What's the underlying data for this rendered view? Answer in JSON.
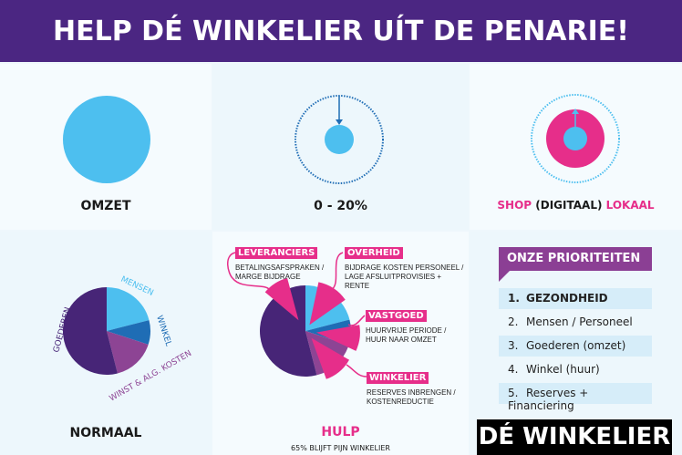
{
  "header": {
    "title": "HELP DÉ WINKELIER UÍT DE PENARIE!"
  },
  "top": {
    "omzet": {
      "label": "OMZET"
    },
    "drop": {
      "label": "0 - 20%"
    },
    "shop": {
      "label_1": "SHOP",
      "label_2": "(DIGITAAL)",
      "label_3": "LOKAAL"
    }
  },
  "normaal": {
    "label": "NORMAAL"
  },
  "hulp": {
    "label": "HULP",
    "note": "65% BLIJFT PIJN WINKELIER",
    "callouts": [
      {
        "title": "LEVERANCIERS",
        "text": [
          "BETALINGSAFSPRAKEN /",
          "MARGE BIJDRAGE"
        ]
      },
      {
        "title": "OVERHEID",
        "text": [
          "BIJDRAGE KOSTEN PERSONEEL /",
          "LAGE AFSLUITPROVISIES +",
          "RENTE"
        ]
      },
      {
        "title": "VASTGOED",
        "text": [
          "HUURVRIJE PERIODE /",
          "HUUR NAAR OMZET"
        ]
      },
      {
        "title": "WINKELIER",
        "text": [
          "RESERVES INBRENGEN /",
          "KOSTENREDUCTIE"
        ]
      }
    ]
  },
  "priorities": {
    "title": "ONZE PRIORITEITEN",
    "items": [
      {
        "n": "1.",
        "label": "GEZONDHEID"
      },
      {
        "n": "2.",
        "label": "Mensen / Personeel"
      },
      {
        "n": "3.",
        "label": "Goederen (omzet)"
      },
      {
        "n": "4.",
        "label": "Winkel (huur)"
      },
      {
        "n": "5.",
        "label": "Reserves + Financiering"
      }
    ]
  },
  "footer": {
    "label": "DÉ WINKELIER"
  },
  "chart_data": [
    {
      "type": "pie",
      "title": "NORMAAL",
      "slices": [
        {
          "name": "MENSEN",
          "value": 21,
          "color": "#4dbfef"
        },
        {
          "name": "WINKEL",
          "value": 9,
          "color": "#1f6db5"
        },
        {
          "name": "WINST & ALG. KOSTEN",
          "value": 16,
          "color": "#8d4494"
        },
        {
          "name": "GOEDEREN",
          "value": 54,
          "color": "#472577"
        }
      ]
    },
    {
      "type": "pie",
      "title": "HULP",
      "slices": [
        {
          "name": "MENSEN",
          "value": 21,
          "color": "#4dbfef"
        },
        {
          "name": "WINKEL",
          "value": 9,
          "color": "#1f6db5"
        },
        {
          "name": "WINST & ALG. KOSTEN",
          "value": 16,
          "color": "#8d4494"
        },
        {
          "name": "GOEDEREN",
          "value": 54,
          "color": "#472577"
        }
      ],
      "exploded": [
        {
          "name": "OVERHEID",
          "color": "#e62e8a"
        },
        {
          "name": "VASTGOED",
          "color": "#e62e8a"
        },
        {
          "name": "WINKELIER",
          "color": "#e62e8a"
        },
        {
          "name": "LEVERANCIERS",
          "color": "#e62e8a"
        }
      ]
    }
  ],
  "colors": {
    "purple": "#4b2682",
    "pink": "#e62e8a",
    "lightblue": "#4dbfef",
    "blue": "#1f6db5"
  }
}
